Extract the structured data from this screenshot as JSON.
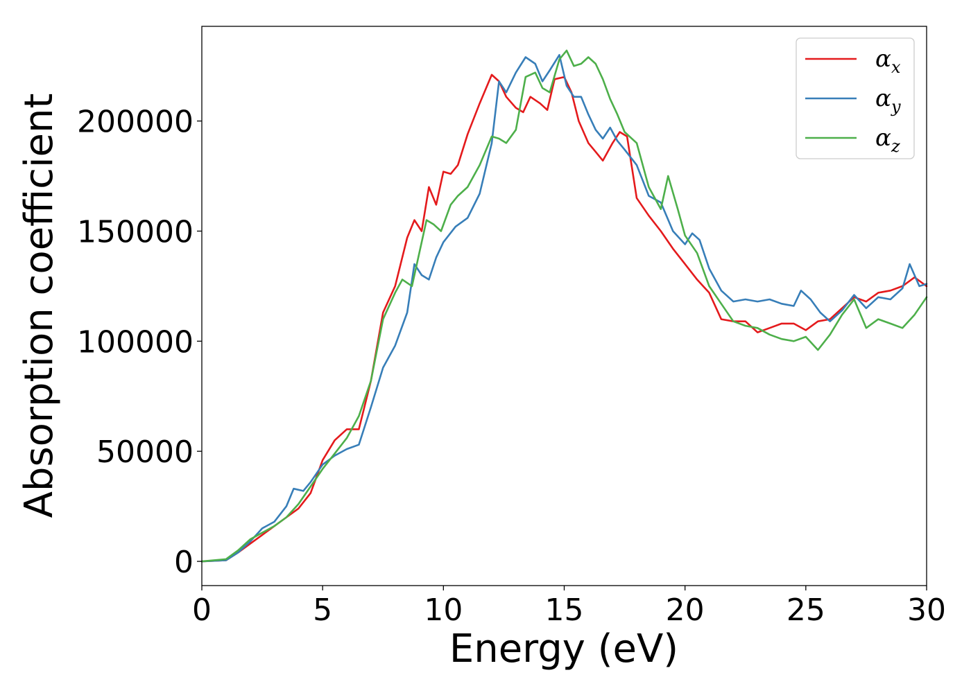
{
  "chart_data": {
    "type": "line",
    "xlabel": "Energy (eV)",
    "ylabel": "Absorption coefficient",
    "xlim": [
      0,
      30
    ],
    "ylim": [
      -11000,
      243000
    ],
    "xticks": [
      0,
      5,
      10,
      15,
      20,
      25,
      30
    ],
    "yticks": [
      0,
      50000,
      100000,
      150000,
      200000
    ],
    "grid": false,
    "legend_position": "top-right",
    "series": [
      {
        "name": "α_x",
        "base": "α",
        "sub": "x",
        "color": "#e41a1c",
        "x": [
          0,
          1,
          1.5,
          2,
          2.5,
          3,
          3.5,
          4,
          4.5,
          5,
          5.5,
          6,
          6.5,
          7,
          7.5,
          8,
          8.5,
          8.8,
          9.1,
          9.4,
          9.7,
          10,
          10.3,
          10.6,
          11,
          11.5,
          12,
          12.3,
          12.6,
          13,
          13.3,
          13.6,
          14,
          14.3,
          14.6,
          15,
          15.3,
          15.6,
          16,
          16.3,
          16.6,
          17,
          17.3,
          17.6,
          18,
          18.5,
          19,
          19.5,
          20,
          20.5,
          21,
          21.5,
          22,
          22.5,
          23,
          23.5,
          24,
          24.5,
          25,
          25.5,
          26,
          26.5,
          27,
          27.5,
          28,
          28.5,
          29,
          29.5,
          30
        ],
        "y": [
          0,
          500,
          4000,
          8000,
          12000,
          16000,
          20000,
          24000,
          31000,
          46000,
          55000,
          60000,
          60000,
          82000,
          113000,
          125000,
          147000,
          155000,
          150000,
          170000,
          162000,
          177000,
          176000,
          180000,
          194000,
          208000,
          221000,
          218000,
          211000,
          206000,
          204000,
          211000,
          208000,
          205000,
          219000,
          220000,
          213000,
          200000,
          190000,
          186000,
          182000,
          190000,
          195000,
          193000,
          165000,
          157000,
          150000,
          142000,
          135000,
          128000,
          122000,
          110000,
          109000,
          109000,
          104000,
          106000,
          108000,
          108000,
          105000,
          109000,
          110000,
          115000,
          120000,
          118000,
          122000,
          123000,
          125000,
          129000,
          125000
        ]
      },
      {
        "name": "α_y",
        "base": "α",
        "sub": "y",
        "color": "#377eb8",
        "x": [
          0,
          1,
          1.5,
          2,
          2.5,
          3,
          3.5,
          3.8,
          4.2,
          4.5,
          5,
          5.5,
          6,
          6.5,
          7,
          7.5,
          8,
          8.5,
          8.8,
          9.1,
          9.4,
          9.7,
          10,
          10.5,
          11,
          11.5,
          12,
          12.3,
          12.6,
          13,
          13.4,
          13.8,
          14.1,
          14.4,
          14.8,
          15.1,
          15.4,
          15.7,
          16,
          16.3,
          16.6,
          16.9,
          17.2,
          17.5,
          18,
          18.5,
          19,
          19.5,
          20,
          20.3,
          20.6,
          21,
          21.5,
          22,
          22.5,
          23,
          23.5,
          24,
          24.5,
          24.8,
          25.2,
          25.6,
          26,
          26.5,
          27,
          27.5,
          28,
          28.5,
          29,
          29.3,
          29.7,
          30
        ],
        "y": [
          0,
          500,
          4000,
          9000,
          15000,
          18000,
          25000,
          33000,
          32000,
          36000,
          44000,
          48000,
          51000,
          53000,
          70000,
          88000,
          98000,
          113000,
          135000,
          130000,
          128000,
          138000,
          145000,
          152000,
          156000,
          167000,
          190000,
          218000,
          213000,
          222000,
          229000,
          226000,
          218000,
          223000,
          230000,
          216000,
          211000,
          211000,
          203000,
          196000,
          192000,
          197000,
          191000,
          187000,
          180000,
          166000,
          163000,
          150000,
          144000,
          149000,
          146000,
          133000,
          123000,
          118000,
          119000,
          118000,
          119000,
          117000,
          116000,
          123000,
          119000,
          113000,
          109000,
          114000,
          121000,
          115000,
          120000,
          119000,
          124000,
          135000,
          125000,
          126000
        ]
      },
      {
        "name": "α_z",
        "base": "α",
        "sub": "z",
        "color": "#4daf4a",
        "x": [
          0,
          1,
          1.5,
          2,
          2.5,
          3,
          3.5,
          4,
          4.5,
          5,
          5.5,
          6,
          6.5,
          7,
          7.5,
          8,
          8.3,
          8.7,
          9,
          9.3,
          9.6,
          9.9,
          10.3,
          10.6,
          11,
          11.5,
          12,
          12.3,
          12.6,
          13,
          13.4,
          13.8,
          14.1,
          14.4,
          14.8,
          15.1,
          15.4,
          15.7,
          16,
          16.3,
          16.6,
          16.9,
          17.2,
          17.5,
          18,
          18.5,
          19,
          19.3,
          19.7,
          20,
          20.5,
          21,
          21.5,
          22,
          22.5,
          23,
          23.5,
          24,
          24.5,
          25,
          25.5,
          26,
          26.5,
          27,
          27.5,
          28,
          28.5,
          29,
          29.5,
          30
        ],
        "y": [
          0,
          1000,
          5000,
          10000,
          13000,
          16000,
          20000,
          26000,
          34000,
          42000,
          49000,
          56000,
          66000,
          82000,
          110000,
          122000,
          128000,
          125000,
          140000,
          155000,
          153000,
          150000,
          162000,
          166000,
          170000,
          180000,
          193000,
          192000,
          190000,
          196000,
          220000,
          222000,
          215000,
          213000,
          228000,
          232000,
          225000,
          226000,
          229000,
          226000,
          219000,
          210000,
          203000,
          195000,
          190000,
          170000,
          160000,
          175000,
          160000,
          148000,
          140000,
          125000,
          117000,
          109000,
          107000,
          106000,
          103000,
          101000,
          100000,
          102000,
          96000,
          103000,
          112000,
          119000,
          106000,
          110000,
          108000,
          106000,
          112000,
          120000
        ]
      }
    ]
  }
}
